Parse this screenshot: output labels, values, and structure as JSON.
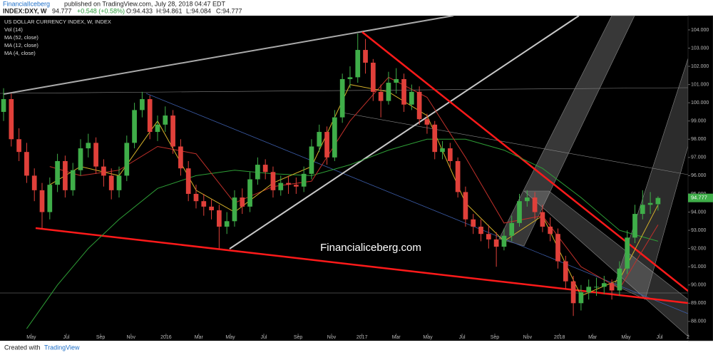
{
  "header": {
    "publisher": "FinancialIceberg",
    "published": "published on TradingView.com, July 28, 2018 04:47 EDT",
    "symbol": "INDEX:DXY, W",
    "last": "94.777",
    "change": "+0.548 (+0.58%)",
    "ohlc": [
      "O:94.433",
      "H:94.861",
      "L:94.084",
      "C:94.777"
    ]
  },
  "footer": {
    "created": "Created with",
    "brand": "TradingView"
  },
  "watermark": "Financialiceberg.com",
  "chart_data": {
    "type": "candlestick",
    "title": "US DOLLAR CURRENCY INDEX, W, INDEX",
    "indicator": "Vol (14)",
    "up_color": "#3fae49",
    "down_color": "#e0403a",
    "xlim": [
      -0.93,
      177.8
    ],
    "ylim": [
      87.33,
      104.78
    ],
    "xticks": [
      {
        "value": 7.2,
        "label": "May"
      },
      {
        "value": 16.3,
        "label": "Jul"
      },
      {
        "value": 25.2,
        "label": "Sep"
      },
      {
        "value": 33.1,
        "label": "Nov"
      },
      {
        "value": 42.2,
        "label": "2016"
      },
      {
        "value": 50.7,
        "label": "Mar"
      },
      {
        "value": 58.9,
        "label": "May"
      },
      {
        "value": 67.6,
        "label": "Jul"
      },
      {
        "value": 76.5,
        "label": "Sep"
      },
      {
        "value": 85.2,
        "label": "Nov"
      },
      {
        "value": 93.1,
        "label": "2017"
      },
      {
        "value": 102,
        "label": "Mar"
      },
      {
        "value": 110.2,
        "label": "May"
      },
      {
        "value": 119.1,
        "label": "Jul"
      },
      {
        "value": 127.6,
        "label": "Sep"
      },
      {
        "value": 136.1,
        "label": "Nov"
      },
      {
        "value": 144.4,
        "label": "2018"
      },
      {
        "value": 153,
        "label": "Mar"
      },
      {
        "value": 161.7,
        "label": "May"
      },
      {
        "value": 170.4,
        "label": "Jul"
      },
      {
        "value": 177.8,
        "label": "2"
      }
    ],
    "yticks": [
      {
        "value": 88,
        "label": "88.000"
      },
      {
        "value": 89,
        "label": "89.000"
      },
      {
        "value": 90,
        "label": "90.000"
      },
      {
        "value": 91,
        "label": "91.000"
      },
      {
        "value": 92,
        "label": "92.000"
      },
      {
        "value": 93,
        "label": "93.000"
      },
      {
        "value": 94,
        "label": "94.000"
      },
      {
        "value": 95,
        "label": "95.000"
      },
      {
        "value": 96,
        "label": "96.000"
      },
      {
        "value": 97,
        "label": "97.000"
      },
      {
        "value": 98,
        "label": "98.000"
      },
      {
        "value": 99,
        "label": "99.000"
      },
      {
        "value": 100,
        "label": "100.000"
      },
      {
        "value": 101,
        "label": "101.000"
      },
      {
        "value": 102,
        "label": "102.000"
      },
      {
        "value": 103,
        "label": "103.000"
      },
      {
        "value": 104,
        "label": "104.000"
      }
    ],
    "x": [
      0,
      2,
      4,
      6,
      8,
      10,
      12,
      14,
      16,
      18,
      20,
      22,
      24,
      26,
      28,
      30,
      32,
      34,
      36,
      38,
      40,
      42,
      44,
      46,
      48,
      50,
      52,
      54,
      56,
      58,
      60,
      62,
      64,
      66,
      68,
      70,
      72,
      74,
      76,
      78,
      80,
      82,
      84,
      86,
      88,
      90,
      92,
      94,
      96,
      98,
      100,
      102,
      104,
      106,
      108,
      110,
      112,
      114,
      116,
      118,
      120,
      122,
      124,
      126,
      128,
      130,
      132,
      134,
      136,
      138,
      140,
      142,
      144,
      146,
      148,
      150,
      152,
      154,
      156,
      158,
      160,
      162,
      164,
      166,
      168,
      170
    ],
    "open": [
      99.5,
      100.2,
      98.0,
      97.3,
      96.0,
      95.2,
      94.0,
      95.5,
      96.8,
      95.2,
      96.3,
      97.5,
      97.8,
      96.5,
      96.0,
      95.2,
      96.0,
      97.8,
      99.6,
      100.2,
      98.4,
      98.8,
      99.3,
      97.6,
      96.4,
      95.0,
      94.6,
      94.3,
      94.1,
      93.2,
      93.5,
      94.8,
      94.3,
      95.8,
      96.6,
      96.2,
      95.2,
      95.6,
      95.5,
      95.4,
      96.1,
      97.6,
      98.4,
      97.0,
      99.2,
      101.3,
      101.4,
      102.9,
      102.2,
      100.6,
      100.1,
      101.1,
      101.3,
      99.9,
      100.6,
      99.1,
      98.8,
      97.3,
      97.5,
      96.8,
      95.1,
      93.6,
      93.2,
      92.8,
      92.5,
      92.1,
      92.7,
      93.4,
      94.6,
      94.8,
      94.0,
      93.2,
      92.8,
      91.3,
      90.2,
      89.0,
      89.6,
      89.9,
      89.9,
      90.1,
      89.7,
      90.9,
      92.6,
      93.9,
      94.4,
      94.433
    ],
    "high": [
      100.8,
      100.5,
      98.6,
      97.8,
      96.4,
      95.6,
      95.9,
      97.2,
      97.1,
      96.7,
      98.0,
      98.3,
      98.1,
      96.9,
      96.4,
      96.5,
      98.2,
      100.0,
      100.6,
      100.4,
      99.3,
      99.8,
      99.6,
      98.0,
      96.8,
      95.5,
      95.0,
      94.7,
      94.4,
      94.0,
      95.2,
      95.3,
      96.2,
      97.0,
      96.9,
      96.5,
      96.0,
      96.0,
      95.9,
      96.5,
      98.0,
      98.8,
      98.7,
      99.6,
      101.6,
      102.0,
      103.8,
      103.5,
      102.4,
      101.0,
      101.7,
      101.9,
      101.6,
      101.0,
      100.9,
      99.4,
      99.0,
      97.9,
      97.8,
      97.0,
      95.4,
      93.9,
      93.6,
      93.3,
      92.9,
      93.1,
      93.8,
      95.0,
      95.2,
      95.1,
      94.4,
      93.7,
      93.1,
      91.6,
      90.5,
      90.0,
      90.3,
      90.4,
      90.5,
      90.3,
      91.3,
      93.0,
      94.4,
      95.2,
      95.1,
      94.861
    ],
    "low": [
      99.0,
      97.6,
      96.8,
      95.6,
      94.6,
      93.1,
      93.6,
      95.1,
      94.8,
      94.9,
      96.0,
      97.0,
      96.1,
      95.4,
      94.7,
      94.8,
      95.7,
      97.5,
      99.2,
      98.0,
      97.9,
      98.4,
      97.2,
      96.0,
      94.6,
      94.2,
      93.8,
      93.6,
      92.0,
      92.8,
      93.2,
      93.9,
      94.0,
      95.5,
      95.8,
      94.8,
      94.9,
      95.0,
      95.0,
      95.1,
      95.8,
      97.3,
      96.6,
      96.8,
      98.9,
      100.8,
      101.1,
      101.6,
      100.1,
      99.2,
      99.9,
      100.5,
      99.5,
      99.6,
      98.8,
      98.3,
      96.9,
      96.9,
      96.4,
      94.8,
      93.2,
      92.8,
      92.4,
      92.0,
      91.0,
      91.9,
      92.4,
      93.2,
      94.3,
      93.6,
      92.9,
      92.4,
      90.9,
      89.8,
      88.3,
      88.6,
      89.2,
      89.4,
      89.5,
      89.2,
      89.4,
      90.6,
      92.3,
      93.6,
      93.9,
      94.084
    ],
    "close": [
      100.2,
      98.0,
      97.3,
      96.0,
      95.2,
      94.0,
      95.5,
      96.8,
      95.2,
      96.3,
      97.5,
      97.8,
      96.5,
      96.0,
      95.2,
      96.0,
      97.8,
      99.6,
      100.2,
      98.4,
      98.8,
      99.3,
      97.6,
      96.4,
      95.0,
      94.6,
      94.3,
      94.1,
      93.2,
      93.5,
      94.8,
      94.3,
      95.8,
      96.6,
      96.2,
      95.2,
      95.6,
      95.5,
      95.4,
      96.1,
      97.6,
      98.4,
      97.0,
      99.2,
      101.3,
      101.4,
      102.9,
      102.2,
      100.6,
      100.1,
      101.1,
      101.3,
      99.9,
      100.6,
      99.1,
      98.8,
      97.3,
      97.5,
      96.8,
      95.1,
      93.6,
      93.2,
      92.8,
      92.5,
      92.1,
      92.7,
      93.4,
      94.6,
      94.8,
      94.0,
      93.2,
      92.8,
      91.3,
      90.2,
      89.0,
      89.6,
      89.9,
      89.9,
      90.1,
      89.7,
      90.9,
      92.6,
      93.9,
      94.4,
      94.5,
      94.777
    ],
    "overlays": [
      {
        "name": "MA (52, close)",
        "color": "#2e9e36",
        "x": [
          6,
          14,
          22,
          30,
          40,
          50,
          60,
          70,
          80,
          90,
          100,
          110,
          120,
          130,
          140,
          150,
          160,
          170
        ],
        "values": [
          87.6,
          90.0,
          92.0,
          93.6,
          95.3,
          96.0,
          96.3,
          96.1,
          96.0,
          96.6,
          97.4,
          98.0,
          98.0,
          97.4,
          96.4,
          94.8,
          93.0,
          92.4
        ]
      },
      {
        "name": "MA (12, close)",
        "color": "#c0302a",
        "x": [
          12,
          20,
          30,
          40,
          50,
          60,
          70,
          80,
          90,
          100,
          110,
          120,
          130,
          140,
          150,
          160,
          170
        ],
        "values": [
          96.5,
          96.0,
          96.3,
          97.6,
          97.2,
          94.5,
          95.4,
          95.7,
          99.0,
          101.4,
          100.3,
          97.0,
          93.4,
          93.8,
          91.0,
          89.8,
          93.3
        ]
      },
      {
        "name": "MA (4, close)",
        "color": "#d6b22a",
        "x": [
          12,
          20,
          30,
          40,
          50,
          60,
          70,
          80,
          90,
          100,
          110,
          120,
          130,
          140,
          150,
          160,
          170
        ],
        "values": [
          95.5,
          96.5,
          96.0,
          99.0,
          95.2,
          94.0,
          95.6,
          96.5,
          101.0,
          100.6,
          99.3,
          94.5,
          92.4,
          93.8,
          89.4,
          90.3,
          94.4
        ]
      }
    ]
  }
}
